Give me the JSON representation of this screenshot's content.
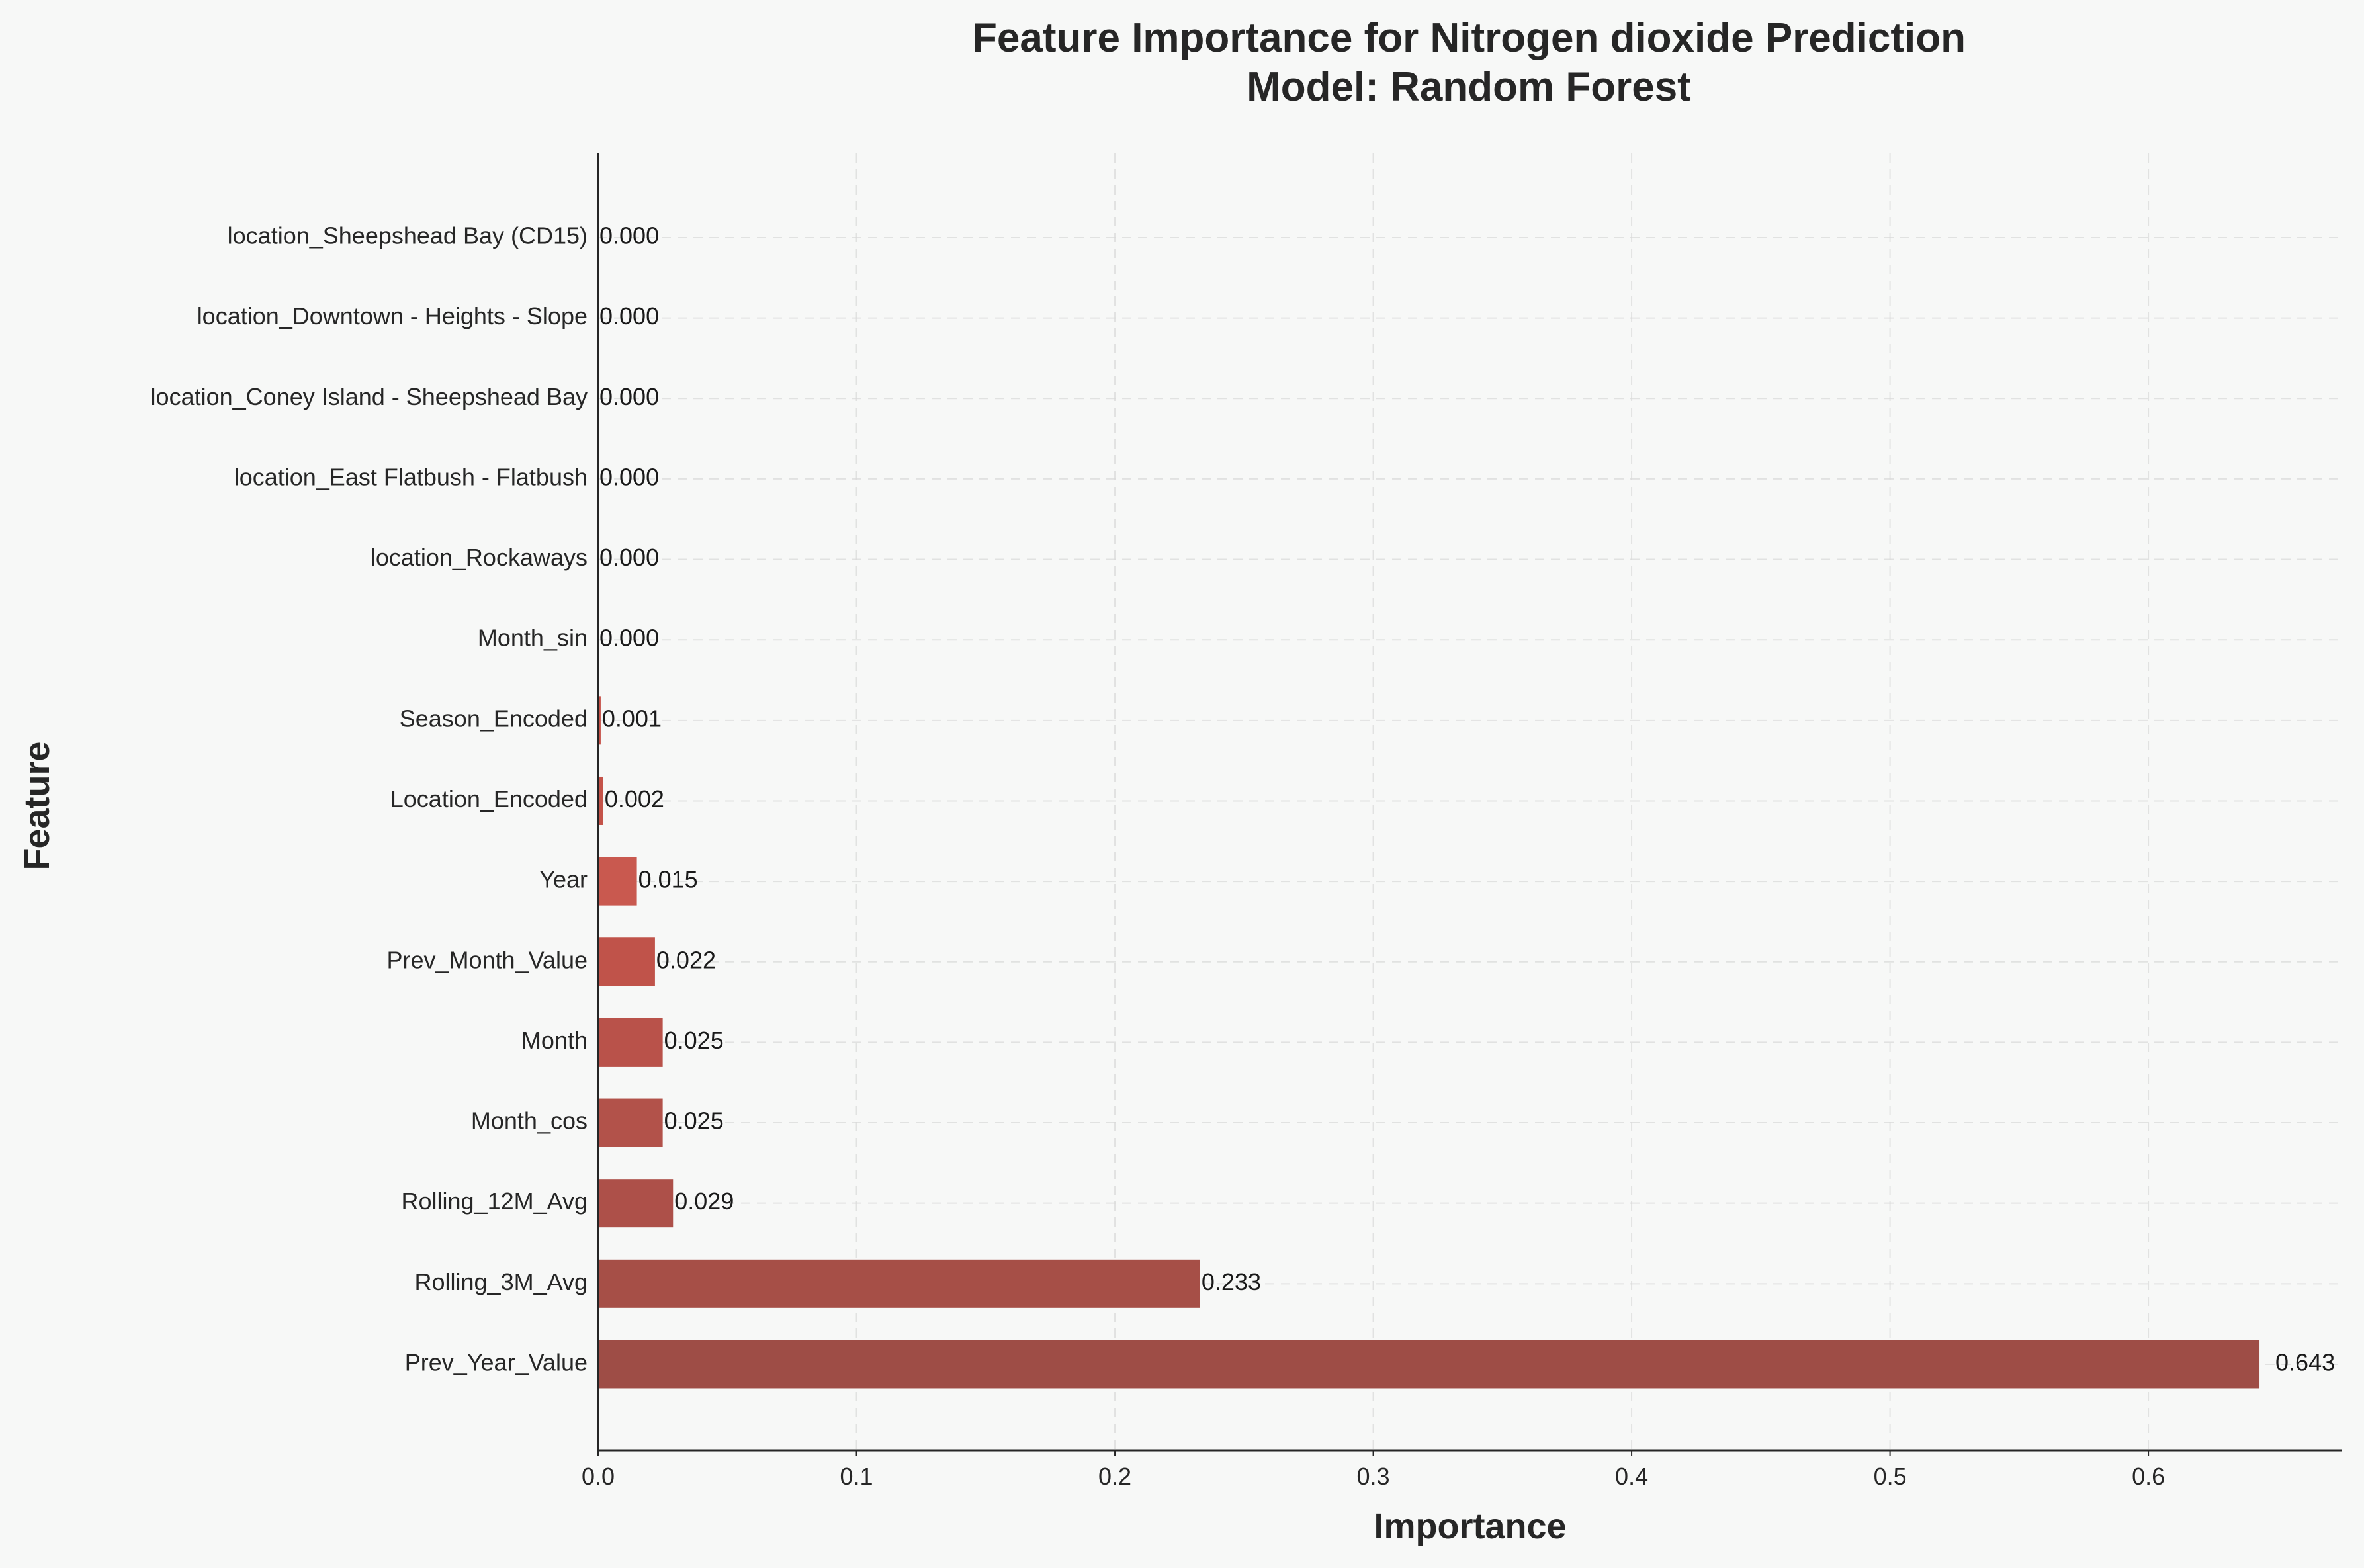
{
  "chart_data": {
    "type": "bar",
    "orientation": "horizontal",
    "title": "Feature Importance for Nitrogen dioxide Prediction",
    "subtitle": "Model: Random Forest",
    "xlabel": "Importance",
    "ylabel": "Feature",
    "xlim": [
      0,
      0.675
    ],
    "xticks": [
      0.0,
      0.1,
      0.2,
      0.3,
      0.4,
      0.5,
      0.6
    ],
    "xtick_labels": [
      "0.0",
      "0.1",
      "0.2",
      "0.3",
      "0.4",
      "0.5",
      "0.6"
    ],
    "grid": true,
    "colormap": "Reds",
    "categories": [
      "location_Sheepshead Bay (CD15)",
      "location_Downtown - Heights - Slope",
      "location_Coney Island - Sheepshead Bay",
      "location_East Flatbush - Flatbush",
      "location_Rockaways",
      "Month_sin",
      "Season_Encoded",
      "Location_Encoded",
      "Year",
      "Prev_Month_Value",
      "Month",
      "Month_cos",
      "Rolling_12M_Avg",
      "Rolling_3M_Avg",
      "Prev_Year_Value"
    ],
    "values": [
      0.0,
      0.0,
      0.0,
      0.0,
      0.0,
      0.0,
      0.001,
      0.002,
      0.015,
      0.022,
      0.025,
      0.025,
      0.029,
      0.233,
      0.643
    ],
    "value_labels": [
      "0.000",
      "0.000",
      "0.000",
      "0.000",
      "0.000",
      "0.000",
      "0.001",
      "0.002",
      "0.015",
      "0.022",
      "0.025",
      "0.025",
      "0.029",
      "0.233",
      "0.643"
    ],
    "colors": [
      "#c7473e",
      "#c7473e",
      "#c7473e",
      "#c7473e",
      "#c7473e",
      "#c7473e",
      "#c65147",
      "#c45349",
      "#c9594f",
      "#c0534a",
      "#b9524a",
      "#b2524a",
      "#ad5049",
      "#a64f47",
      "#9e4d46"
    ]
  }
}
